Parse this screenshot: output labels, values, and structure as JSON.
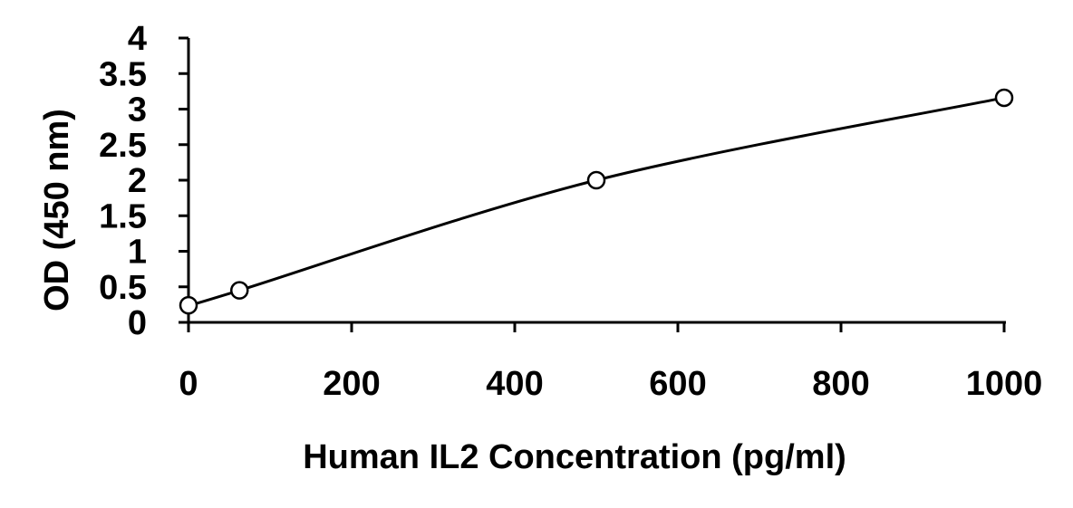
{
  "chart_data": {
    "type": "scatter",
    "title": "",
    "xlabel": "Human IL2 Concentration (pg/ml)",
    "ylabel": "OD (450 nm)",
    "xlim": [
      0,
      1000
    ],
    "ylim": [
      0,
      4
    ],
    "x_ticks": [
      0,
      200,
      400,
      600,
      800,
      1000
    ],
    "x_tick_labels": [
      "0",
      "200",
      "400",
      "600",
      "800",
      "1000"
    ],
    "y_ticks": [
      0,
      0.5,
      1,
      1.5,
      2,
      2.5,
      3,
      3.5,
      4
    ],
    "y_tick_labels": [
      "0",
      "0.5",
      "1",
      "1.5",
      "2",
      "2.5",
      "3",
      "3.5",
      "4"
    ],
    "grid": false,
    "legend": "none",
    "series": [
      {
        "points": [
          {
            "x": 0,
            "y": 0.24
          },
          {
            "x": 62.5,
            "y": 0.45
          },
          {
            "x": 500,
            "y": 2.0
          },
          {
            "x": 1000,
            "y": 3.16
          }
        ],
        "fit_curve": "smooth",
        "marker": "open-circle",
        "color": "#000000"
      }
    ]
  }
}
